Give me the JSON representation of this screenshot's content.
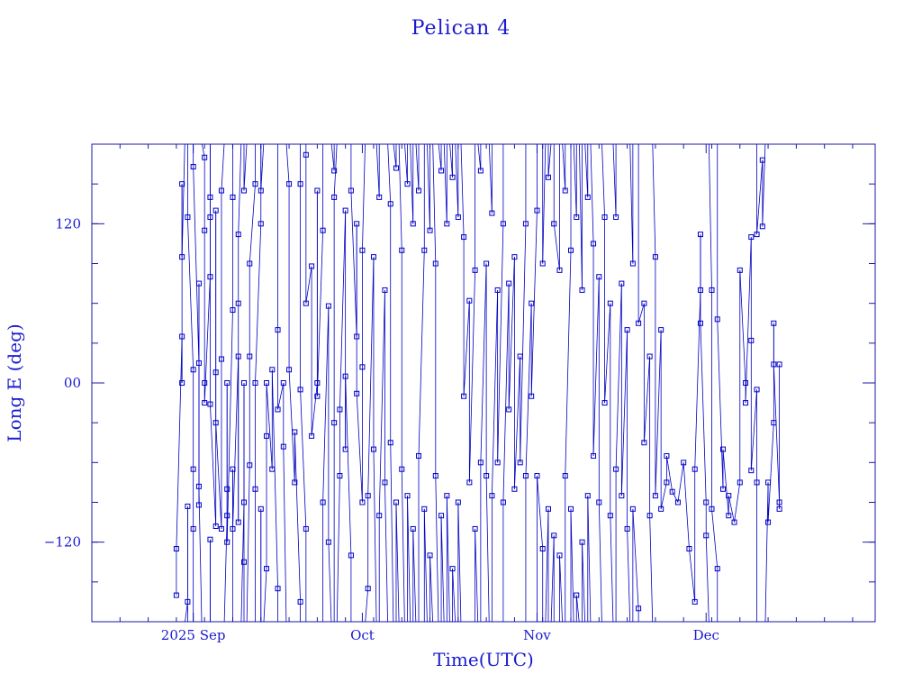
{
  "chart_data": {
    "type": "scatter",
    "title": "Pelican 4",
    "xlabel": "Time(UTC)",
    "ylabel": "Long E (deg)",
    "x_axis": {
      "type": "time",
      "range": [
        "2025-08-14",
        "2025-12-31"
      ],
      "ticks": [
        {
          "date": "2025-09-01",
          "label": "2025 Sep"
        },
        {
          "date": "2025-10-01",
          "label": "Oct"
        },
        {
          "date": "2025-11-01",
          "label": "Nov"
        },
        {
          "date": "2025-12-01",
          "label": "Dec"
        }
      ]
    },
    "y_axis": {
      "range": [
        -180,
        180
      ],
      "ticks": [
        {
          "value": 120,
          "label": "120"
        },
        {
          "value": 0,
          "label": "00"
        },
        {
          "value": -120,
          "label": "−120"
        }
      ],
      "minor_step": 30
    },
    "grid": false,
    "colors": {
      "series": "#0000c8",
      "axes": "#1a1aa8",
      "text": "#1a1ad0"
    },
    "series": [
      {
        "marker": "square",
        "points": [
          [
            "2025-08-29",
            -160
          ],
          [
            "2025-08-29",
            -125
          ],
          [
            "2025-08-30",
            35
          ],
          [
            "2025-08-30",
            0
          ],
          [
            "2025-08-30",
            150
          ],
          [
            "2025-08-30",
            95
          ],
          [
            "2025-08-31",
            -165
          ],
          [
            "2025-08-31",
            -93
          ],
          [
            "2025-08-31",
            125
          ],
          [
            "2025-09-01",
            10
          ],
          [
            "2025-09-01",
            -65
          ],
          [
            "2025-09-01",
            -110
          ],
          [
            "2025-09-01",
            163
          ],
          [
            "2025-09-02",
            15
          ],
          [
            "2025-09-02",
            -92
          ],
          [
            "2025-09-02",
            75
          ],
          [
            "2025-09-02",
            -78
          ],
          [
            "2025-09-03",
            170
          ],
          [
            "2025-09-03",
            115
          ],
          [
            "2025-09-03",
            0
          ],
          [
            "2025-09-03",
            -15
          ],
          [
            "2025-09-04",
            80
          ],
          [
            "2025-09-04",
            -118
          ],
          [
            "2025-09-04",
            140
          ],
          [
            "2025-09-04",
            125
          ],
          [
            "2025-09-04",
            -16
          ],
          [
            "2025-09-05",
            -108
          ],
          [
            "2025-09-05",
            8
          ],
          [
            "2025-09-05",
            130
          ],
          [
            "2025-09-05",
            -30
          ],
          [
            "2025-09-06",
            -110
          ],
          [
            "2025-09-06",
            18
          ],
          [
            "2025-09-06",
            145
          ],
          [
            "2025-09-07",
            -100
          ],
          [
            "2025-09-07",
            0
          ],
          [
            "2025-09-07",
            -80
          ],
          [
            "2025-09-07",
            -120
          ],
          [
            "2025-09-08",
            55
          ],
          [
            "2025-09-08",
            140
          ],
          [
            "2025-09-08",
            -65
          ],
          [
            "2025-09-08",
            -110
          ],
          [
            "2025-09-09",
            20
          ],
          [
            "2025-09-09",
            -105
          ],
          [
            "2025-09-09",
            60
          ],
          [
            "2025-09-09",
            112
          ],
          [
            "2025-09-10",
            -90
          ],
          [
            "2025-09-10",
            0
          ],
          [
            "2025-09-10",
            -135
          ],
          [
            "2025-09-10",
            145
          ],
          [
            "2025-09-11",
            -62
          ],
          [
            "2025-09-11",
            20
          ],
          [
            "2025-09-11",
            90
          ],
          [
            "2025-09-12",
            150
          ],
          [
            "2025-09-12",
            -80
          ],
          [
            "2025-09-12",
            0
          ],
          [
            "2025-09-13",
            120
          ],
          [
            "2025-09-13",
            -95
          ],
          [
            "2025-09-13",
            145
          ],
          [
            "2025-09-14",
            -140
          ],
          [
            "2025-09-14",
            -40
          ],
          [
            "2025-09-14",
            0
          ],
          [
            "2025-09-15",
            -65
          ],
          [
            "2025-09-15",
            10
          ],
          [
            "2025-09-16",
            -155
          ],
          [
            "2025-09-16",
            40
          ],
          [
            "2025-09-16",
            -20
          ],
          [
            "2025-09-17",
            0
          ],
          [
            "2025-09-17",
            -48
          ],
          [
            "2025-09-18",
            150
          ],
          [
            "2025-09-18",
            10
          ],
          [
            "2025-09-19",
            -75
          ],
          [
            "2025-09-19",
            -37
          ],
          [
            "2025-09-20",
            -165
          ],
          [
            "2025-09-20",
            150
          ],
          [
            "2025-09-20",
            -5
          ],
          [
            "2025-09-21",
            -110
          ],
          [
            "2025-09-21",
            172
          ],
          [
            "2025-09-21",
            60
          ],
          [
            "2025-09-22",
            88
          ],
          [
            "2025-09-22",
            -40
          ],
          [
            "2025-09-23",
            0
          ],
          [
            "2025-09-23",
            145
          ],
          [
            "2025-09-23",
            -10
          ],
          [
            "2025-09-24",
            115
          ],
          [
            "2025-09-24",
            -90
          ],
          [
            "2025-09-25",
            58
          ],
          [
            "2025-09-25",
            -120
          ],
          [
            "2025-09-26",
            160
          ],
          [
            "2025-09-26",
            -30
          ],
          [
            "2025-09-26",
            140
          ],
          [
            "2025-09-27",
            -70
          ],
          [
            "2025-09-27",
            -20
          ],
          [
            "2025-09-28",
            130
          ],
          [
            "2025-09-28",
            -50
          ],
          [
            "2025-09-28",
            5
          ],
          [
            "2025-09-29",
            -130
          ],
          [
            "2025-09-29",
            145
          ],
          [
            "2025-09-30",
            35
          ],
          [
            "2025-09-30",
            120
          ],
          [
            "2025-09-30",
            -8
          ],
          [
            "2025-10-01",
            -90
          ],
          [
            "2025-10-01",
            12
          ],
          [
            "2025-10-01",
            100
          ],
          [
            "2025-10-02",
            -155
          ],
          [
            "2025-10-02",
            -85
          ],
          [
            "2025-10-03",
            95
          ],
          [
            "2025-10-03",
            -50
          ],
          [
            "2025-10-04",
            140
          ],
          [
            "2025-10-04",
            -100
          ],
          [
            "2025-10-05",
            70
          ],
          [
            "2025-10-05",
            -75
          ],
          [
            "2025-10-06",
            135
          ],
          [
            "2025-10-06",
            -45
          ],
          [
            "2025-10-07",
            162
          ],
          [
            "2025-10-07",
            -90
          ],
          [
            "2025-10-08",
            100
          ],
          [
            "2025-10-08",
            -65
          ],
          [
            "2025-10-09",
            150
          ],
          [
            "2025-10-09",
            -85
          ],
          [
            "2025-10-10",
            120
          ],
          [
            "2025-10-10",
            -110
          ],
          [
            "2025-10-11",
            145
          ],
          [
            "2025-10-11",
            -55
          ],
          [
            "2025-10-12",
            100
          ],
          [
            "2025-10-12",
            -95
          ],
          [
            "2025-10-13",
            115
          ],
          [
            "2025-10-13",
            -130
          ],
          [
            "2025-10-14",
            90
          ],
          [
            "2025-10-14",
            -70
          ],
          [
            "2025-10-15",
            160
          ],
          [
            "2025-10-15",
            -100
          ],
          [
            "2025-10-16",
            120
          ],
          [
            "2025-10-16",
            -85
          ],
          [
            "2025-10-17",
            155
          ],
          [
            "2025-10-17",
            -140
          ],
          [
            "2025-10-18",
            125
          ],
          [
            "2025-10-18",
            -90
          ],
          [
            "2025-10-19",
            110
          ],
          [
            "2025-10-19",
            -10
          ],
          [
            "2025-10-20",
            62
          ],
          [
            "2025-10-20",
            -75
          ],
          [
            "2025-10-21",
            85
          ],
          [
            "2025-10-21",
            -110
          ],
          [
            "2025-10-22",
            160
          ],
          [
            "2025-10-22",
            -60
          ],
          [
            "2025-10-23",
            90
          ],
          [
            "2025-10-23",
            -70
          ],
          [
            "2025-10-24",
            128
          ],
          [
            "2025-10-24",
            -85
          ],
          [
            "2025-10-25",
            70
          ],
          [
            "2025-10-25",
            -60
          ],
          [
            "2025-10-26",
            120
          ],
          [
            "2025-10-26",
            -90
          ],
          [
            "2025-10-27",
            75
          ],
          [
            "2025-10-27",
            -20
          ],
          [
            "2025-10-28",
            95
          ],
          [
            "2025-10-28",
            -80
          ],
          [
            "2025-10-29",
            20
          ],
          [
            "2025-10-29",
            -60
          ],
          [
            "2025-10-30",
            120
          ],
          [
            "2025-10-30",
            -70
          ],
          [
            "2025-10-31",
            60
          ],
          [
            "2025-10-31",
            -10
          ],
          [
            "2025-11-01",
            130
          ],
          [
            "2025-11-01",
            -70
          ],
          [
            "2025-11-02",
            -125
          ],
          [
            "2025-11-02",
            90
          ],
          [
            "2025-11-03",
            -95
          ],
          [
            "2025-11-03",
            155
          ],
          [
            "2025-11-04",
            -115
          ],
          [
            "2025-11-04",
            120
          ],
          [
            "2025-11-05",
            85
          ],
          [
            "2025-11-05",
            -130
          ],
          [
            "2025-11-06",
            145
          ],
          [
            "2025-11-06",
            -70
          ],
          [
            "2025-11-07",
            100
          ],
          [
            "2025-11-07",
            -95
          ],
          [
            "2025-11-08",
            125
          ],
          [
            "2025-11-08",
            -160
          ],
          [
            "2025-11-09",
            70
          ],
          [
            "2025-11-09",
            -120
          ],
          [
            "2025-11-10",
            140
          ],
          [
            "2025-11-10",
            -85
          ],
          [
            "2025-11-11",
            105
          ],
          [
            "2025-11-11",
            -55
          ],
          [
            "2025-11-12",
            80
          ],
          [
            "2025-11-12",
            -90
          ],
          [
            "2025-11-13",
            125
          ],
          [
            "2025-11-13",
            -15
          ],
          [
            "2025-11-14",
            60
          ],
          [
            "2025-11-14",
            -100
          ],
          [
            "2025-11-15",
            125
          ],
          [
            "2025-11-15",
            -65
          ],
          [
            "2025-11-16",
            75
          ],
          [
            "2025-11-16",
            -85
          ],
          [
            "2025-11-17",
            40
          ],
          [
            "2025-11-17",
            -110
          ],
          [
            "2025-11-18",
            90
          ],
          [
            "2025-11-18",
            -95
          ],
          [
            "2025-11-19",
            -170
          ],
          [
            "2025-11-19",
            45
          ],
          [
            "2025-11-20",
            60
          ],
          [
            "2025-11-20",
            -45
          ],
          [
            "2025-11-21",
            20
          ],
          [
            "2025-11-21",
            -100
          ],
          [
            "2025-11-22",
            95
          ],
          [
            "2025-11-22",
            -85
          ],
          [
            "2025-11-23",
            40
          ],
          [
            "2025-11-23",
            -95
          ],
          [
            "2025-11-24",
            -75
          ],
          [
            "2025-11-24",
            -55
          ],
          [
            "2025-11-25",
            -82
          ],
          [
            "2025-11-26",
            -90
          ],
          [
            "2025-11-27",
            -60
          ],
          [
            "2025-11-28",
            -125
          ],
          [
            "2025-11-29",
            -165
          ],
          [
            "2025-11-29",
            -65
          ],
          [
            "2025-11-30",
            70
          ],
          [
            "2025-11-30",
            112
          ],
          [
            "2025-11-30",
            45
          ],
          [
            "2025-12-01",
            -90
          ],
          [
            "2025-12-01",
            -115
          ],
          [
            "2025-12-02",
            70
          ],
          [
            "2025-12-02",
            -95
          ],
          [
            "2025-12-03",
            -140
          ],
          [
            "2025-12-03",
            48
          ],
          [
            "2025-12-04",
            -80
          ],
          [
            "2025-12-04",
            -50
          ],
          [
            "2025-12-05",
            -100
          ],
          [
            "2025-12-05",
            -85
          ],
          [
            "2025-12-06",
            -105
          ],
          [
            "2025-12-07",
            -75
          ],
          [
            "2025-12-07",
            85
          ],
          [
            "2025-12-08",
            0
          ],
          [
            "2025-12-08",
            -15
          ],
          [
            "2025-12-09",
            110
          ],
          [
            "2025-12-09",
            32
          ],
          [
            "2025-12-09",
            -66
          ],
          [
            "2025-12-10",
            -5
          ],
          [
            "2025-12-10",
            -75
          ],
          [
            "2025-12-10",
            112
          ],
          [
            "2025-12-11",
            168
          ],
          [
            "2025-12-11",
            118
          ],
          [
            "2025-12-12",
            -75
          ],
          [
            "2025-12-12",
            -105
          ],
          [
            "2025-12-13",
            -30
          ],
          [
            "2025-12-13",
            45
          ],
          [
            "2025-12-13",
            14
          ],
          [
            "2025-12-14",
            -90
          ],
          [
            "2025-12-14",
            -95
          ],
          [
            "2025-12-14",
            14
          ]
        ]
      }
    ]
  }
}
